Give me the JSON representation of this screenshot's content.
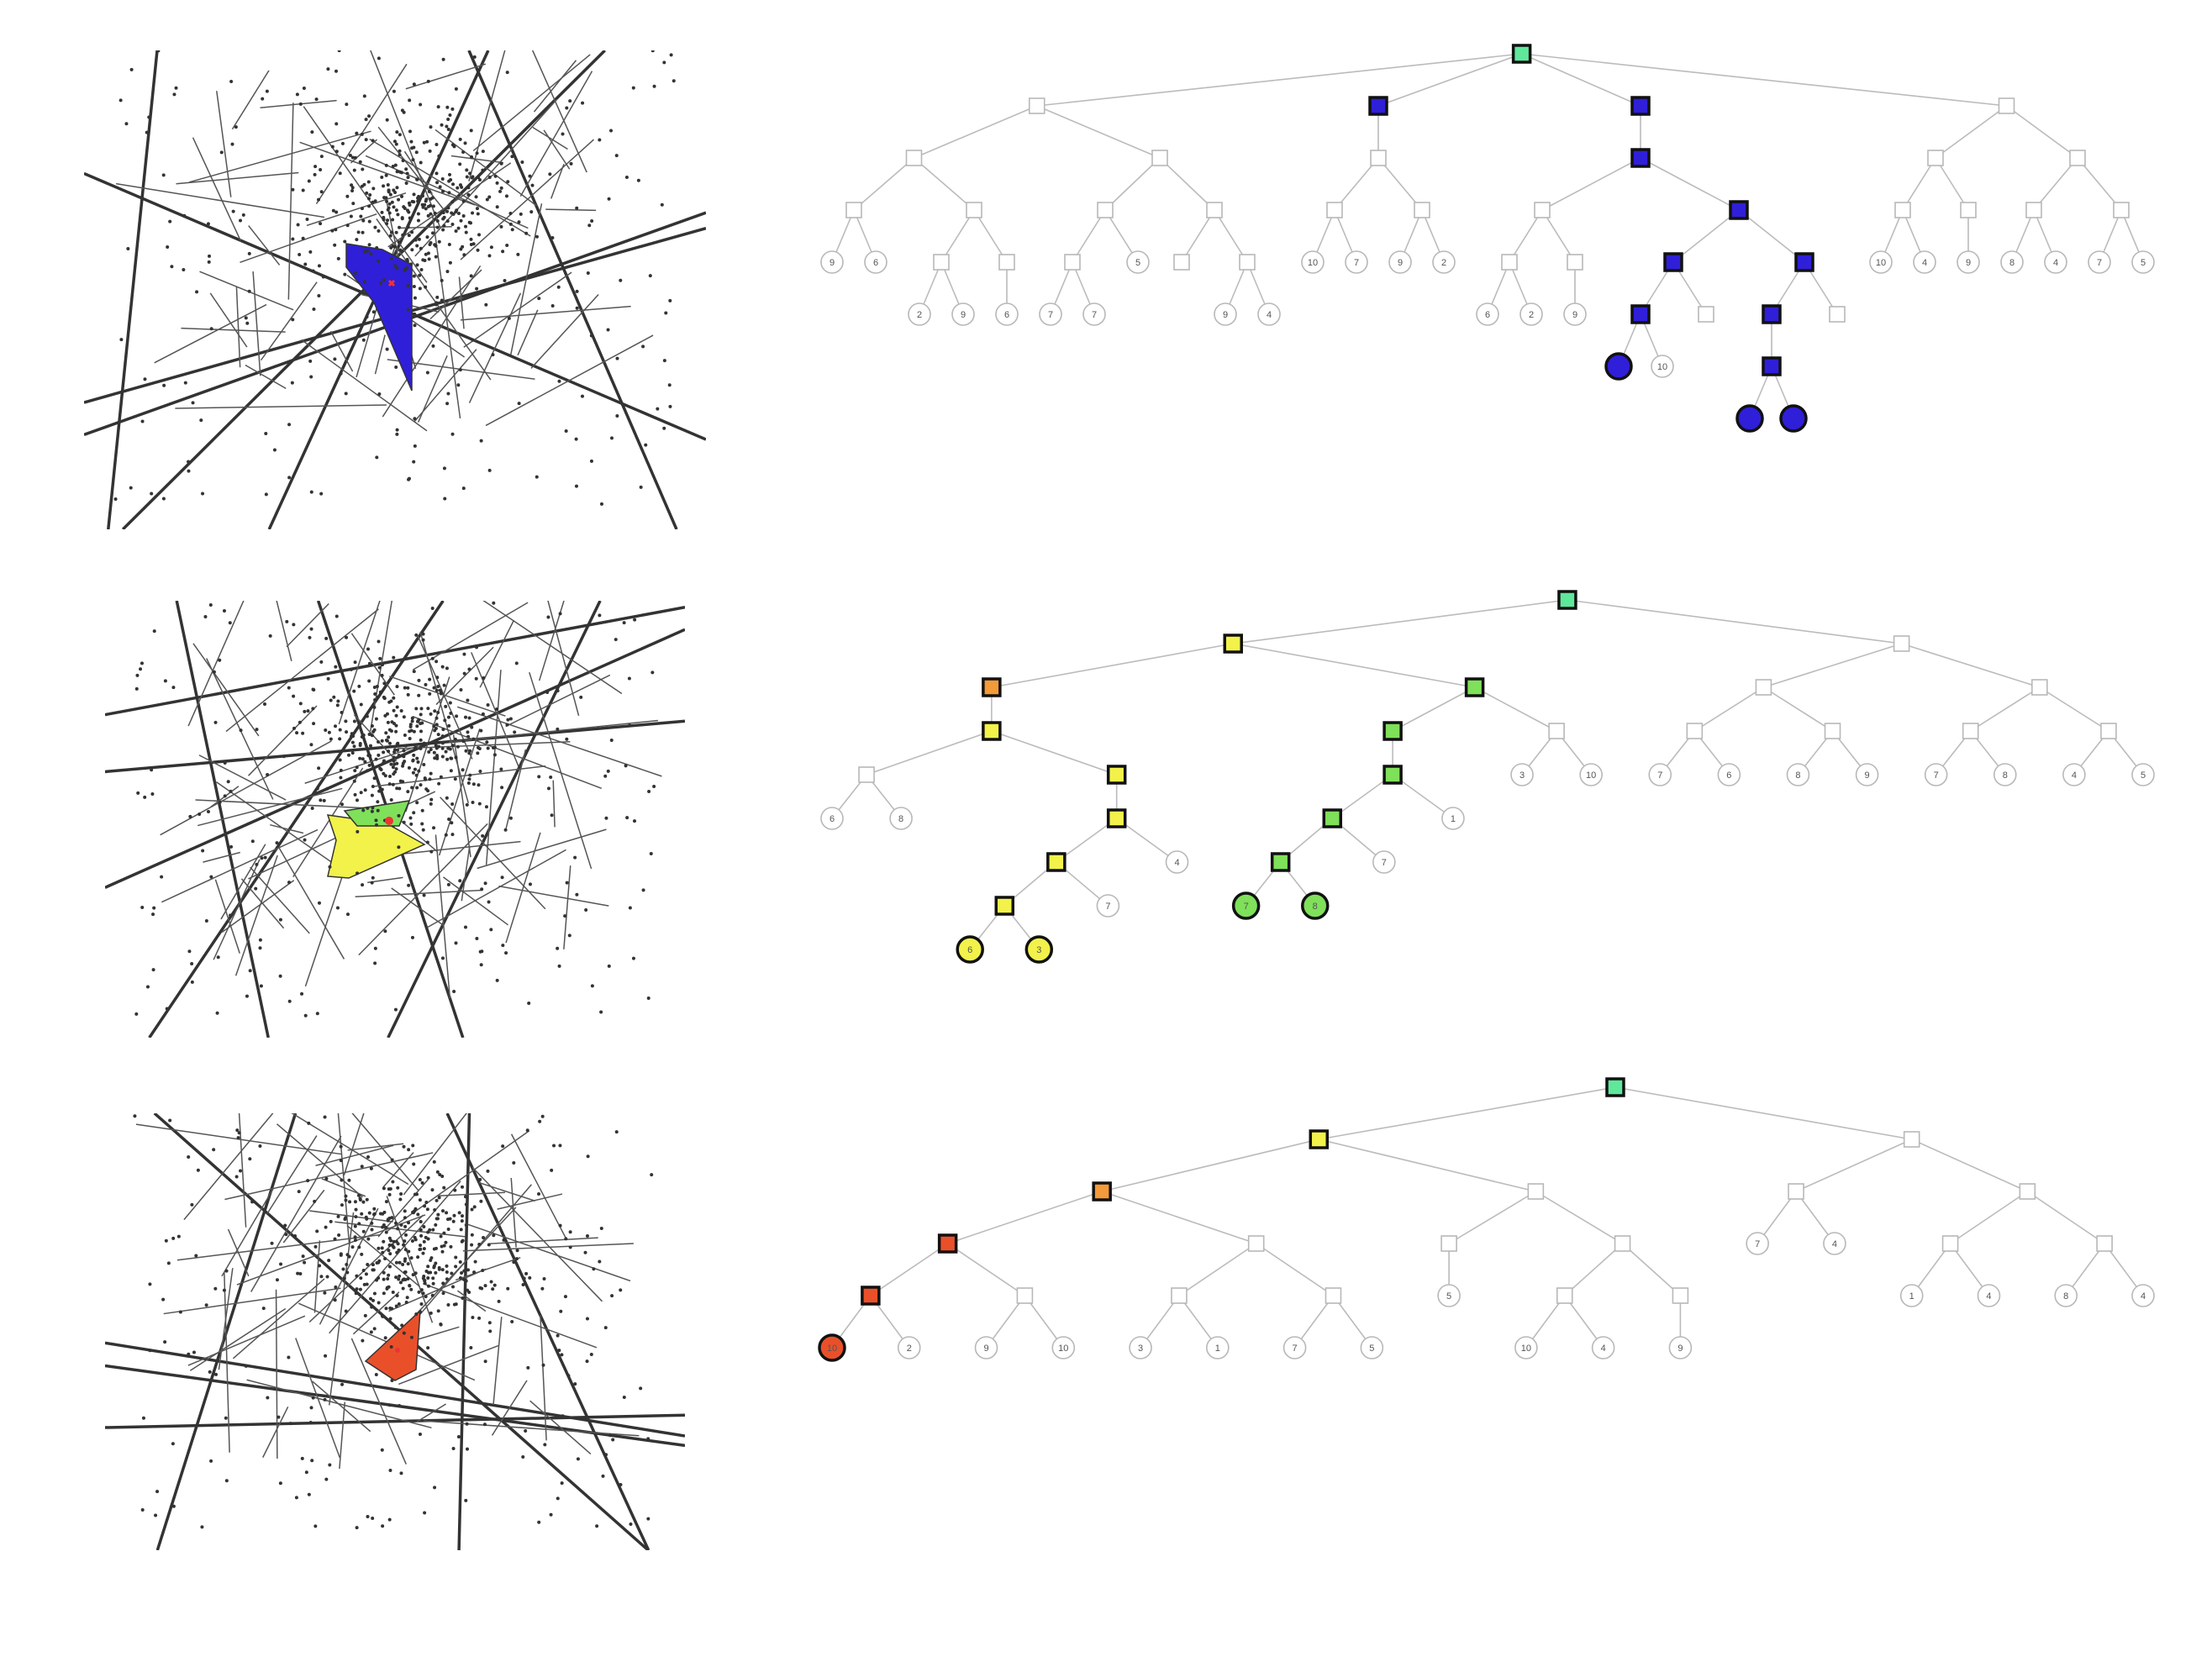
{
  "colors": {
    "root": "#5fe89b",
    "blue": "#2f1fd8",
    "yellow": "#f2f24a",
    "green": "#7fe05a",
    "orange": "#f39a3a",
    "red": "#e9502a",
    "edge": "#bbbbbb",
    "plain_stroke": "#b8b8b8"
  },
  "rows": [
    {
      "id": "row1",
      "highlight_color": "blue",
      "tree": {
        "nodes": [
          {
            "id": "r",
            "shape": "sq",
            "hl": "root"
          },
          {
            "id": "a",
            "shape": "sq",
            "parent": "r"
          },
          {
            "id": "b",
            "shape": "sq",
            "parent": "r",
            "hl": "blue"
          },
          {
            "id": "a1",
            "shape": "sq",
            "parent": "a"
          },
          {
            "id": "a2",
            "shape": "sq",
            "parent": "a"
          },
          {
            "id": "a1a",
            "shape": "sq",
            "parent": "a1"
          },
          {
            "id": "a1b",
            "shape": "sq",
            "parent": "a1"
          },
          {
            "id": "l9a",
            "label": "9",
            "parent": "a1a"
          },
          {
            "id": "l6a",
            "label": "6",
            "parent": "a1a"
          },
          {
            "id": "a1b1",
            "shape": "sq",
            "parent": "a1b"
          },
          {
            "id": "a1b2",
            "shape": "sq",
            "parent": "a1b"
          },
          {
            "id": "l2a",
            "label": "2",
            "parent": "a1b1"
          },
          {
            "id": "l9b",
            "label": "9",
            "parent": "a1b1"
          },
          {
            "id": "l6b",
            "label": "6",
            "parent": "a1b2"
          },
          {
            "id": "a2a",
            "shape": "sq",
            "parent": "a2"
          },
          {
            "id": "a2b",
            "shape": "sq",
            "parent": "a2"
          },
          {
            "id": "a2a1",
            "shape": "sq",
            "parent": "a2a"
          },
          {
            "id": "l5a",
            "label": "5",
            "parent": "a2a"
          },
          {
            "id": "a2b1",
            "shape": "sq",
            "parent": "a2b"
          },
          {
            "id": "a2b2",
            "shape": "sq",
            "parent": "a2b"
          },
          {
            "id": "l7a",
            "label": "7",
            "parent": "a2a1"
          },
          {
            "id": "l7b",
            "label": "7",
            "parent": "a2a1"
          },
          {
            "id": "l9c",
            "label": "9",
            "parent": "a2b2"
          },
          {
            "id": "l4a",
            "label": "4",
            "parent": "a2b2"
          },
          {
            "id": "b1",
            "shape": "sq",
            "parent": "b"
          },
          {
            "id": "c",
            "shape": "sq",
            "parent": "r",
            "hl": "blue"
          },
          {
            "id": "d",
            "shape": "sq",
            "parent": "r"
          },
          {
            "id": "b1a",
            "shape": "sq",
            "parent": "b1"
          },
          {
            "id": "b1b",
            "shape": "sq",
            "parent": "b1"
          },
          {
            "id": "l10a",
            "label": "10",
            "parent": "b1a"
          },
          {
            "id": "l7c",
            "label": "7",
            "parent": "b1a"
          },
          {
            "id": "l9d",
            "label": "9",
            "parent": "b1b"
          },
          {
            "id": "l2b",
            "label": "2",
            "parent": "b1b"
          },
          {
            "id": "c1",
            "shape": "sq",
            "parent": "c",
            "hl": "blue"
          },
          {
            "id": "c1a",
            "shape": "sq",
            "parent": "c1"
          },
          {
            "id": "c1b",
            "shape": "sq",
            "parent": "c1",
            "hl": "blue"
          },
          {
            "id": "c1b1",
            "shape": "sq",
            "parent": "c1b",
            "hl": "blue"
          },
          {
            "id": "c1b2",
            "shape": "sq",
            "parent": "c1b",
            "hl": "blue"
          },
          {
            "id": "c1b1a",
            "shape": "sq",
            "parent": "c1b1",
            "hl": "blue"
          },
          {
            "id": "c1b1b",
            "shape": "sq",
            "parent": "c1b1"
          },
          {
            "id": "lb1",
            "label": "",
            "parent": "c1b1a",
            "hl": "blue"
          },
          {
            "id": "l10b",
            "label": "10",
            "parent": "c1b1a"
          },
          {
            "id": "c1b2a",
            "shape": "sq",
            "parent": "c1b2",
            "hl": "blue"
          },
          {
            "id": "c1b2b",
            "shape": "sq",
            "parent": "c1b2"
          },
          {
            "id": "c1b2a1",
            "shape": "sq",
            "parent": "c1b2a",
            "hl": "blue"
          },
          {
            "id": "lb2",
            "label": "",
            "parent": "c1b2a1",
            "hl": "blue"
          },
          {
            "id": "lb3",
            "label": "",
            "parent": "c1b2a1",
            "hl": "blue"
          },
          {
            "id": "c1a1",
            "shape": "sq",
            "parent": "c1a"
          },
          {
            "id": "c1a2",
            "shape": "sq",
            "parent": "c1a"
          },
          {
            "id": "l6c",
            "label": "6",
            "parent": "c1a1"
          },
          {
            "id": "l2c",
            "label": "2",
            "parent": "c1a1"
          },
          {
            "id": "l9e",
            "label": "9",
            "parent": "c1a2"
          },
          {
            "id": "d1",
            "shape": "sq",
            "parent": "d"
          },
          {
            "id": "d2",
            "shape": "sq",
            "parent": "d"
          },
          {
            "id": "d1a",
            "shape": "sq",
            "parent": "d1"
          },
          {
            "id": "d1b",
            "shape": "sq",
            "parent": "d1"
          },
          {
            "id": "l10c",
            "label": "10",
            "parent": "d1a"
          },
          {
            "id": "l4b",
            "label": "4",
            "parent": "d1a"
          },
          {
            "id": "l9f",
            "label": "9",
            "parent": "d1b"
          },
          {
            "id": "d2a",
            "shape": "sq",
            "parent": "d2"
          },
          {
            "id": "d2b",
            "shape": "sq",
            "parent": "d2"
          },
          {
            "id": "l8a",
            "label": "8",
            "parent": "d2a"
          },
          {
            "id": "l4c",
            "label": "4",
            "parent": "d2a"
          },
          {
            "id": "l7d",
            "label": "7",
            "parent": "d2b"
          },
          {
            "id": "l5b",
            "label": "5",
            "parent": "d2b"
          }
        ]
      }
    },
    {
      "id": "row2",
      "highlight_color": "yellow",
      "tree": {
        "nodes": [
          {
            "id": "r",
            "shape": "sq",
            "hl": "root"
          },
          {
            "id": "a",
            "shape": "sq",
            "parent": "r",
            "hl": "yellow"
          },
          {
            "id": "b",
            "shape": "sq",
            "parent": "r"
          },
          {
            "id": "a1",
            "shape": "sq",
            "parent": "a",
            "hl": "orange"
          },
          {
            "id": "a2",
            "shape": "sq",
            "parent": "a",
            "hl": "green"
          },
          {
            "id": "a1a",
            "shape": "sq",
            "parent": "a1",
            "hl": "yellow"
          },
          {
            "id": "a1a1",
            "shape": "sq",
            "parent": "a1a"
          },
          {
            "id": "a1a2",
            "shape": "sq",
            "parent": "a1a",
            "hl": "yellow"
          },
          {
            "id": "a1a2a",
            "shape": "sq",
            "parent": "a1a2",
            "hl": "yellow"
          },
          {
            "id": "a1a2a1",
            "shape": "sq",
            "parent": "a1a2a",
            "hl": "yellow"
          },
          {
            "id": "a1a2a1a",
            "shape": "sq",
            "parent": "a1a2a1",
            "hl": "yellow"
          },
          {
            "id": "y1",
            "label": "6",
            "parent": "a1a2a1a",
            "hl": "yellow"
          },
          {
            "id": "y2",
            "label": "3",
            "parent": "a1a2a1a",
            "hl": "yellow"
          },
          {
            "id": "l7a",
            "label": "7",
            "parent": "a1a2a1"
          },
          {
            "id": "l4a",
            "label": "4",
            "parent": "a1a2a"
          },
          {
            "id": "l6a",
            "label": "6",
            "parent": "a1a1"
          },
          {
            "id": "l8a",
            "label": "8",
            "parent": "a1a1"
          },
          {
            "id": "a2a",
            "shape": "sq",
            "parent": "a2",
            "hl": "green"
          },
          {
            "id": "a2b",
            "shape": "sq",
            "parent": "a2"
          },
          {
            "id": "a2a1",
            "shape": "sq",
            "parent": "a2a",
            "hl": "green"
          },
          {
            "id": "a2a1a",
            "shape": "sq",
            "parent": "a2a1",
            "hl": "green"
          },
          {
            "id": "a2a1a1",
            "shape": "sq",
            "parent": "a2a1a",
            "hl": "green"
          },
          {
            "id": "g1",
            "label": "7",
            "parent": "a2a1a1",
            "hl": "green"
          },
          {
            "id": "g2",
            "label": "8",
            "parent": "a2a1a1",
            "hl": "green"
          },
          {
            "id": "l3a",
            "label": "3",
            "parent": "a2b"
          },
          {
            "id": "l10a",
            "label": "10",
            "parent": "a2b"
          },
          {
            "id": "l1a",
            "label": "1",
            "parent": "a2a1"
          },
          {
            "id": "l7b",
            "label": "7",
            "parent": "a2a1a"
          },
          {
            "id": "b1",
            "shape": "sq",
            "parent": "b"
          },
          {
            "id": "b2",
            "shape": "sq",
            "parent": "b"
          },
          {
            "id": "b1a",
            "shape": "sq",
            "parent": "b1"
          },
          {
            "id": "b1b",
            "shape": "sq",
            "parent": "b1"
          },
          {
            "id": "l7c",
            "label": "7",
            "parent": "b1a"
          },
          {
            "id": "l6b",
            "label": "6",
            "parent": "b1a"
          },
          {
            "id": "l8b",
            "label": "8",
            "parent": "b1b"
          },
          {
            "id": "l9a",
            "label": "9",
            "parent": "b1b"
          },
          {
            "id": "b2a",
            "shape": "sq",
            "parent": "b2"
          },
          {
            "id": "b2b",
            "shape": "sq",
            "parent": "b2"
          },
          {
            "id": "l7d",
            "label": "7",
            "parent": "b2a"
          },
          {
            "id": "l8c",
            "label": "8",
            "parent": "b2a"
          },
          {
            "id": "l4b",
            "label": "4",
            "parent": "b2b"
          },
          {
            "id": "l5a",
            "label": "5",
            "parent": "b2b"
          }
        ]
      }
    },
    {
      "id": "row3",
      "highlight_color": "red",
      "tree": {
        "nodes": [
          {
            "id": "r",
            "shape": "sq",
            "hl": "root"
          },
          {
            "id": "a",
            "shape": "sq",
            "parent": "r",
            "hl": "yellow"
          },
          {
            "id": "b",
            "shape": "sq",
            "parent": "r"
          },
          {
            "id": "a1",
            "shape": "sq",
            "parent": "a",
            "hl": "orange"
          },
          {
            "id": "a2",
            "shape": "sq",
            "parent": "a"
          },
          {
            "id": "a1a",
            "shape": "sq",
            "parent": "a1",
            "hl": "red"
          },
          {
            "id": "a1b",
            "shape": "sq",
            "parent": "a1"
          },
          {
            "id": "a1a1",
            "shape": "sq",
            "parent": "a1a",
            "hl": "red"
          },
          {
            "id": "a1a2",
            "shape": "sq",
            "parent": "a1a"
          },
          {
            "id": "rl",
            "label": "10",
            "parent": "a1a1",
            "hl": "red"
          },
          {
            "id": "l2a",
            "label": "2",
            "parent": "a1a1"
          },
          {
            "id": "l9a",
            "label": "9",
            "parent": "a1a2"
          },
          {
            "id": "l10a",
            "label": "10",
            "parent": "a1a2"
          },
          {
            "id": "a1b1",
            "shape": "sq",
            "parent": "a1b"
          },
          {
            "id": "a1b2",
            "shape": "sq",
            "parent": "a1b"
          },
          {
            "id": "l3a",
            "label": "3",
            "parent": "a1b1"
          },
          {
            "id": "l1a",
            "label": "1",
            "parent": "a1b1"
          },
          {
            "id": "l7a",
            "label": "7",
            "parent": "a1b2"
          },
          {
            "id": "l5a",
            "label": "5",
            "parent": "a1b2"
          },
          {
            "id": "a2a",
            "shape": "sq",
            "parent": "a2"
          },
          {
            "id": "a2b",
            "shape": "sq",
            "parent": "a2"
          },
          {
            "id": "l5b",
            "label": "5",
            "parent": "a2a"
          },
          {
            "id": "a2b1",
            "shape": "sq",
            "parent": "a2b"
          },
          {
            "id": "a2b2",
            "shape": "sq",
            "parent": "a2b"
          },
          {
            "id": "l10b",
            "label": "10",
            "parent": "a2b1"
          },
          {
            "id": "l4a",
            "label": "4",
            "parent": "a2b1"
          },
          {
            "id": "l9b",
            "label": "9",
            "parent": "a2b2"
          },
          {
            "id": "b1",
            "shape": "sq",
            "parent": "b"
          },
          {
            "id": "b2",
            "shape": "sq",
            "parent": "b"
          },
          {
            "id": "l7b",
            "label": "7",
            "parent": "b1"
          },
          {
            "id": "l4b",
            "label": "4",
            "parent": "b1"
          },
          {
            "id": "b2a",
            "shape": "sq",
            "parent": "b2"
          },
          {
            "id": "b2b",
            "shape": "sq",
            "parent": "b2"
          },
          {
            "id": "l1b",
            "label": "1",
            "parent": "b2a"
          },
          {
            "id": "l4c",
            "label": "4",
            "parent": "b2a"
          },
          {
            "id": "l8a",
            "label": "8",
            "parent": "b2b"
          },
          {
            "id": "l4d",
            "label": "4",
            "parent": "b2b"
          }
        ]
      }
    }
  ]
}
